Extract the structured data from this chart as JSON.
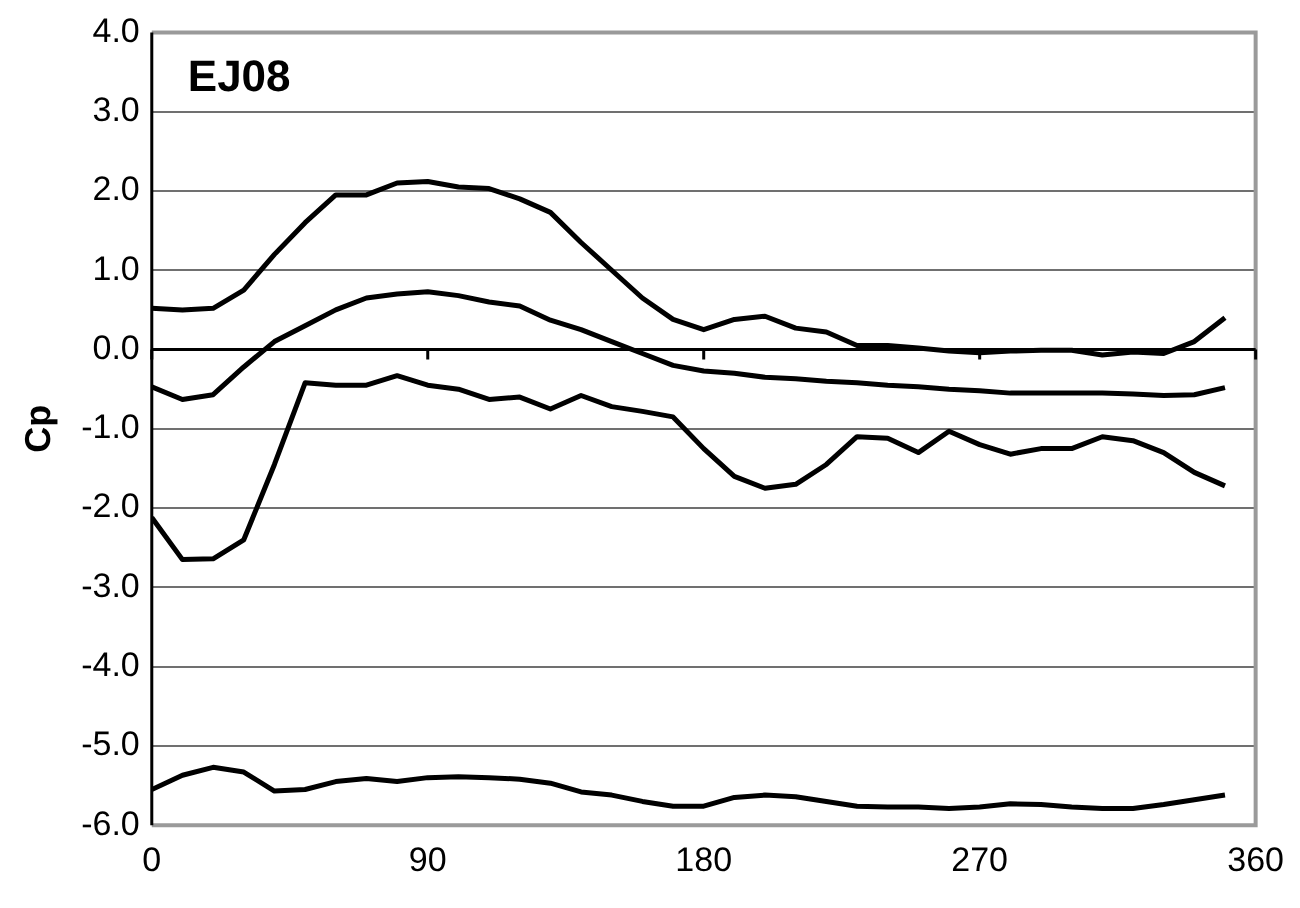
{
  "chart_data": {
    "type": "line",
    "title": "EJ08",
    "ylabel": "Cp",
    "x": [
      0,
      10,
      20,
      30,
      40,
      50,
      60,
      70,
      80,
      90,
      100,
      110,
      120,
      130,
      140,
      150,
      160,
      170,
      180,
      190,
      200,
      210,
      220,
      230,
      240,
      250,
      260,
      270,
      280,
      290,
      300,
      310,
      320,
      330,
      340,
      350
    ],
    "series": [
      {
        "color": "#000000",
        "values": [
          0.52,
          0.5,
          0.52,
          0.75,
          1.2,
          1.6,
          1.95,
          1.95,
          2.1,
          2.12,
          2.05,
          2.03,
          1.9,
          1.73,
          1.35,
          1.0,
          0.65,
          0.38,
          0.25,
          0.38,
          0.42,
          0.27,
          0.22,
          0.05,
          0.05,
          0.02,
          -0.02,
          -0.04,
          -0.02,
          -0.01,
          -0.01,
          -0.07,
          -0.03,
          -0.05,
          0.1,
          0.4
        ]
      },
      {
        "color": "#000000",
        "values": [
          -0.47,
          -0.63,
          -0.57,
          -0.22,
          0.1,
          0.3,
          0.5,
          0.65,
          0.7,
          0.73,
          0.68,
          0.6,
          0.55,
          0.37,
          0.25,
          0.1,
          -0.05,
          -0.2,
          -0.27,
          -0.3,
          -0.35,
          -0.37,
          -0.4,
          -0.42,
          -0.45,
          -0.47,
          -0.5,
          -0.52,
          -0.55,
          -0.55,
          -0.55,
          -0.55,
          -0.56,
          -0.58,
          -0.57,
          -0.48
        ]
      },
      {
        "color": "#000000",
        "values": [
          -2.12,
          -2.65,
          -2.64,
          -2.4,
          -1.45,
          -0.42,
          -0.45,
          -0.45,
          -0.33,
          -0.45,
          -0.5,
          -0.63,
          -0.6,
          -0.75,
          -0.58,
          -0.72,
          -0.78,
          -0.85,
          -1.25,
          -1.6,
          -1.75,
          -1.7,
          -1.45,
          -1.1,
          -1.12,
          -1.3,
          -1.03,
          -1.2,
          -1.32,
          -1.25,
          -1.25,
          -1.1,
          -1.15,
          -1.3,
          -1.55,
          -1.72
        ]
      },
      {
        "color": "#000000",
        "values": [
          -5.55,
          -5.37,
          -5.27,
          -5.33,
          -5.57,
          -5.55,
          -5.45,
          -5.41,
          -5.45,
          -5.4,
          -5.39,
          -5.4,
          -5.42,
          -5.47,
          -5.58,
          -5.62,
          -5.7,
          -5.76,
          -5.76,
          -5.65,
          -5.62,
          -5.64,
          -5.7,
          -5.76,
          -5.77,
          -5.77,
          -5.79,
          -5.77,
          -5.73,
          -5.74,
          -5.77,
          -5.79,
          -5.79,
          -5.74,
          -5.68,
          -5.62
        ]
      }
    ],
    "xlim": [
      0,
      360
    ],
    "xticks": [
      0,
      90,
      180,
      270,
      360
    ],
    "ylim": [
      -6,
      4
    ],
    "yticks": [
      {
        "value": -6,
        "label": "-6.0"
      },
      {
        "value": -5,
        "label": "-5.0"
      },
      {
        "value": -4,
        "label": "-4.0"
      },
      {
        "value": -3,
        "label": "-3.0"
      },
      {
        "value": -2,
        "label": "-2.0"
      },
      {
        "value": -1,
        "label": "-1.0"
      },
      {
        "value": 0,
        "label": "0.0"
      },
      {
        "value": 1,
        "label": "1.0"
      },
      {
        "value": 2,
        "label": "2.0"
      },
      {
        "value": 3,
        "label": "3.0"
      },
      {
        "value": 4,
        "label": "4.0"
      }
    ],
    "grid": "y",
    "legend": false,
    "marker": "none",
    "line_style": "solid"
  }
}
